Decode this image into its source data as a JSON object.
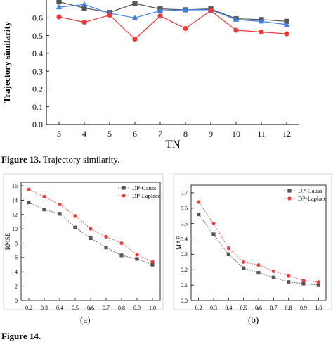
{
  "captions": {
    "fig13_label": "Figure 13.",
    "fig13_text": "Trajectory similarity.",
    "fig14_label": "Figure 14.",
    "panel_a": "(a)",
    "panel_b": "(b)"
  },
  "chart_data": [
    {
      "type": "line",
      "xlabel": "TN",
      "ylabel": "Trajectory similarity",
      "x": [
        3,
        4,
        5,
        6,
        7,
        8,
        9,
        10,
        11,
        12
      ],
      "yticks": [
        0.0,
        0.1,
        0.2,
        0.3,
        0.4,
        0.5,
        0.6
      ],
      "ylim": [
        0,
        0.7
      ],
      "series": [
        {
          "marker": "square",
          "color": "#555555",
          "values": [
            0.69,
            0.655,
            0.63,
            0.68,
            0.65,
            0.645,
            0.65,
            0.595,
            0.59,
            0.58
          ]
        },
        {
          "marker": "triangle",
          "color": "#3d7fe6",
          "values": [
            0.66,
            0.675,
            0.625,
            0.6,
            0.64,
            0.645,
            0.645,
            0.59,
            0.58,
            0.562
          ]
        },
        {
          "marker": "circle",
          "color": "#ee3a3a",
          "values": [
            0.605,
            0.575,
            0.615,
            0.48,
            0.61,
            0.54,
            0.64,
            0.53,
            0.52,
            0.51
          ]
        }
      ]
    },
    {
      "type": "line",
      "xlabel": "ε",
      "ylabel": "RMSE",
      "x": [
        0.2,
        0.3,
        0.4,
        0.5,
        0.6,
        0.7,
        0.8,
        0.9,
        1.0
      ],
      "xticks": [
        "0.2",
        "0.3",
        "0.4",
        "0.5",
        "0.6",
        "0.7",
        "0.8",
        "0.9",
        "1.0"
      ],
      "yticks": [
        0,
        2,
        4,
        6,
        8,
        10,
        12,
        14,
        16
      ],
      "ylim": [
        0,
        16.5
      ],
      "legend": "top-right",
      "series": [
        {
          "name": "DP-Gauss",
          "marker": "square",
          "color": "#555555",
          "values": [
            13.7,
            12.7,
            12.1,
            10.2,
            8.7,
            7.4,
            6.3,
            5.8,
            5.0
          ]
        },
        {
          "name": "DP-Laplace",
          "marker": "circle",
          "color": "#ee3a3a",
          "values": [
            15.5,
            14.5,
            13.4,
            11.8,
            10.0,
            8.9,
            8.0,
            6.4,
            5.4
          ]
        }
      ]
    },
    {
      "type": "line",
      "xlabel": "ε",
      "ylabel": "MAE",
      "x": [
        0.2,
        0.3,
        0.4,
        0.5,
        0.6,
        0.7,
        0.8,
        0.9,
        1.0
      ],
      "xticks": [
        "0.2",
        "0.3",
        "0.4",
        "0.5",
        "0.6",
        "0.7",
        "0.8",
        "0.9",
        "1.0"
      ],
      "yticks": [
        0.0,
        0.1,
        0.2,
        0.3,
        0.4,
        0.5,
        0.6,
        0.7
      ],
      "ylim": [
        0,
        0.75
      ],
      "legend": "top-right",
      "series": [
        {
          "name": "DP-Gauss",
          "marker": "square",
          "color": "#555555",
          "values": [
            0.56,
            0.43,
            0.3,
            0.21,
            0.18,
            0.15,
            0.12,
            0.11,
            0.1
          ]
        },
        {
          "name": "DP-Laplace",
          "marker": "circle",
          "color": "#ee3a3a",
          "values": [
            0.64,
            0.5,
            0.34,
            0.25,
            0.23,
            0.19,
            0.16,
            0.13,
            0.12
          ]
        }
      ]
    }
  ]
}
